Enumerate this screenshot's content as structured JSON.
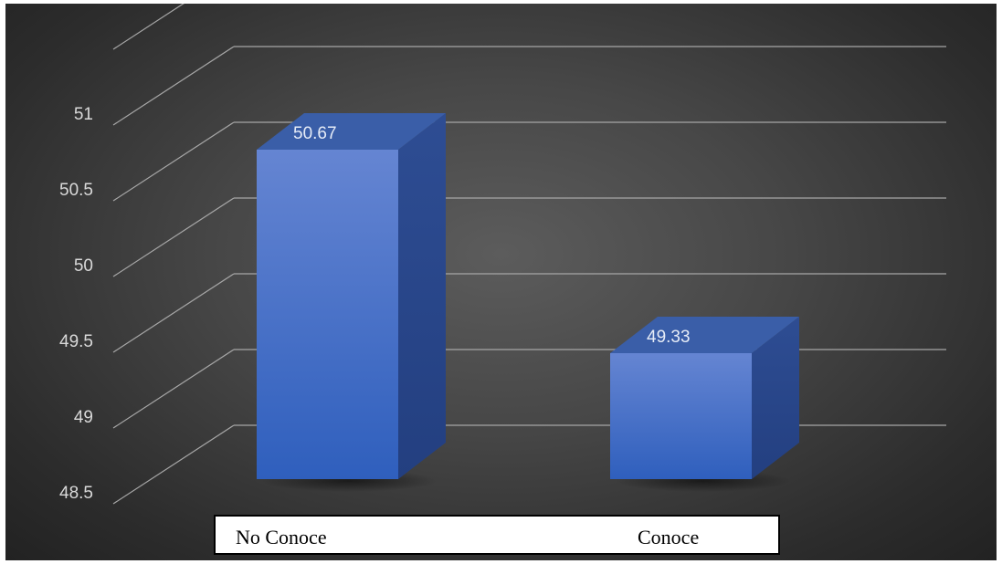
{
  "chart_data": {
    "type": "bar",
    "style": "3d-column",
    "categories": [
      "No Conoce",
      "Conoce"
    ],
    "values": [
      50.67,
      49.33
    ],
    "data_labels": [
      "50.67",
      "49.33"
    ],
    "y_ticks": [
      "48.5",
      "49",
      "49.5",
      "50",
      "50.5",
      "51"
    ],
    "y_tick_values": [
      48.5,
      49,
      49.5,
      50,
      50.5,
      51
    ],
    "ylim": [
      48.5,
      51.25
    ],
    "title": "",
    "xlabel": "",
    "ylabel": "",
    "grid": true,
    "legend": false
  },
  "colors": {
    "background": "#474747",
    "gridline": "#a6a6a6",
    "bar_front_top": "#6585d2",
    "bar_front_bottom": "#2f5fbd",
    "bar_side": "#27468e",
    "bar_top": "#3a5ea8",
    "tick_text": "#d9d9d9",
    "data_label_text": "#e6ecf7"
  }
}
